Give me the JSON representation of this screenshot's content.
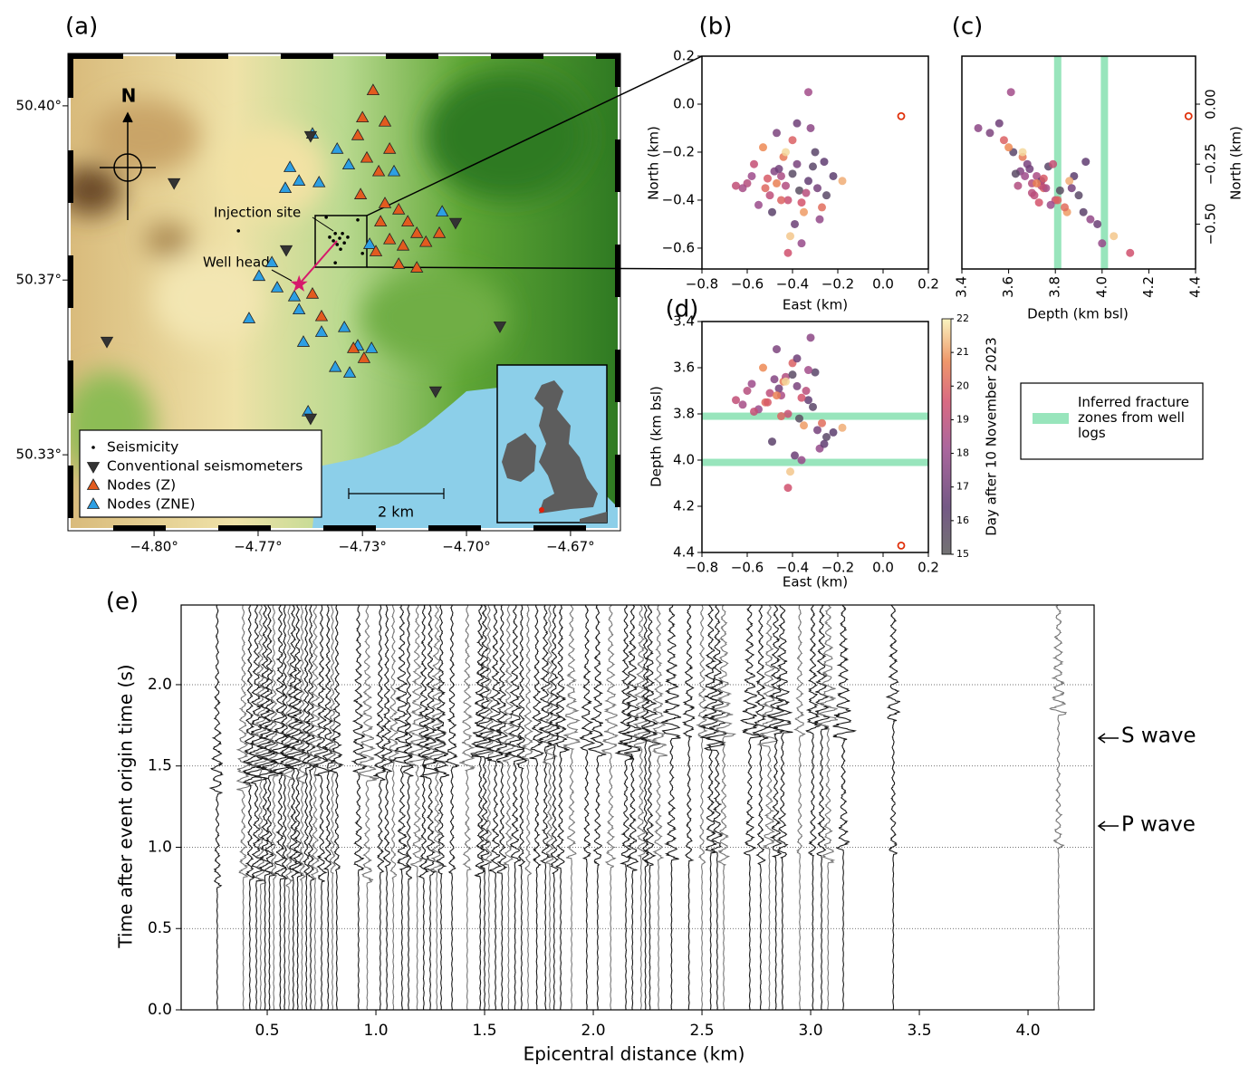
{
  "chart_data": [
    {
      "type": "map",
      "panel_label": "(a)",
      "xlim": [
        -4.8267,
        -4.6516
      ],
      "ylim": [
        50.3193,
        50.4095
      ],
      "xticks": [
        {
          "value": -4.8,
          "label": "−4.80°"
        },
        {
          "value": -4.7667,
          "label": "−4.77°"
        },
        {
          "value": -4.7333,
          "label": "−4.73°"
        },
        {
          "value": -4.7,
          "label": "−4.70°"
        },
        {
          "value": -4.6667,
          "label": "−4.67°"
        }
      ],
      "yticks": [
        {
          "value": 50.4,
          "label": "50.40°"
        },
        {
          "value": 50.3667,
          "label": "50.37°"
        },
        {
          "value": 50.3333,
          "label": "50.33°"
        }
      ],
      "north_label": "N",
      "series": [
        {
          "name": "Seismicity",
          "color": "#000000",
          "marker": "dot",
          "x": [
            -4.7406,
            -4.742,
            -4.7391,
            -4.7426,
            -4.7397,
            -4.7414,
            -4.738,
            -4.7438,
            -4.7403,
            -4.773,
            -4.7449,
            -4.7348,
            -4.742,
            -4.7333
          ],
          "y": [
            50.3747,
            50.3756,
            50.3738,
            50.3742,
            50.3756,
            50.3735,
            50.3749,
            50.3749,
            50.3726,
            50.3761,
            50.3787,
            50.3782,
            50.37,
            50.3718
          ]
        },
        {
          "name": "Conventional seismometers",
          "color": "#333333",
          "marker": "triangle-down",
          "x": [
            -4.7936,
            -4.7577,
            -4.8151,
            -4.7499,
            -4.7035,
            -4.6893,
            -4.7099,
            -4.7499
          ],
          "y": [
            50.3853,
            50.3725,
            50.355,
            50.3943,
            50.3777,
            50.3579,
            50.3455,
            50.3403
          ]
        },
        {
          "name": "Nodes (Z)",
          "color": "#e25b1f",
          "marker": "triangle-up",
          "x": [
            -4.7299,
            -4.7333,
            -4.7261,
            -4.7348,
            -4.7246,
            -4.7319,
            -4.7281,
            -4.7339,
            -4.7261,
            -4.7217,
            -4.7275,
            -4.7188,
            -4.7159,
            -4.7246,
            -4.7203,
            -4.729,
            -4.713,
            -4.7217,
            -4.7159,
            -4.7087,
            -4.7493,
            -4.7464,
            -4.7362,
            -4.7328
          ],
          "y": [
            50.4029,
            50.3977,
            50.3969,
            50.3943,
            50.3917,
            50.39,
            50.3874,
            50.383,
            50.3813,
            50.3801,
            50.3778,
            50.3778,
            50.3756,
            50.3744,
            50.3732,
            50.3721,
            50.3739,
            50.3697,
            50.369,
            50.3756,
            50.364,
            50.3597,
            50.3536,
            50.3517
          ]
        },
        {
          "name": "Nodes (ZNE)",
          "color": "#2d9fe3",
          "marker": "triangle-up",
          "x": [
            -4.7493,
            -4.7565,
            -4.7536,
            -4.758,
            -4.7472,
            -4.7414,
            -4.7377,
            -4.7232,
            -4.7078,
            -4.7623,
            -4.7664,
            -4.7606,
            -4.7551,
            -4.7696,
            -4.7536,
            -4.7464,
            -4.7522,
            -4.7391,
            -4.7348,
            -4.7304,
            -4.742,
            -4.7374,
            -4.7507,
            -4.731
          ],
          "y": [
            50.3946,
            50.3882,
            50.3856,
            50.3842,
            50.3853,
            50.3917,
            50.3887,
            50.3874,
            50.3797,
            50.37,
            50.3674,
            50.3652,
            50.3635,
            50.3593,
            50.361,
            50.3567,
            50.3548,
            50.3576,
            50.3541,
            50.3536,
            50.35,
            50.3489,
            50.3415,
            50.3735
          ]
        }
      ],
      "well_head": {
        "lon": -4.7536,
        "lat": 50.3659,
        "color": "#d6196b"
      },
      "injection_label": "Injection site",
      "well_head_label": "Well head",
      "scale_label": "2 km"
    },
    {
      "type": "hypocenters",
      "events": {
        "east": [
          -0.45,
          -0.38,
          -0.52,
          -0.3,
          -0.42,
          -0.6,
          -0.35,
          -0.48,
          -0.25,
          -0.4,
          -0.55,
          -0.33,
          -0.44,
          -0.28,
          -0.5,
          -0.37,
          -0.62,
          -0.41,
          -0.46,
          -0.22,
          -0.36,
          -0.53,
          -0.31,
          -0.43,
          -0.57,
          -0.39,
          -0.27,
          -0.47,
          -0.34,
          -0.49,
          -0.18,
          -0.42,
          -0.58,
          -0.32,
          -0.45,
          -0.4,
          -0.26,
          -0.51,
          -0.36,
          -0.43,
          -0.29,
          -0.65,
          -0.38,
          -0.47,
          -0.33
        ],
        "north": [
          -0.3,
          -0.25,
          -0.35,
          -0.2,
          -0.4,
          -0.33,
          -0.45,
          -0.28,
          -0.38,
          -0.15,
          -0.42,
          -0.32,
          -0.22,
          -0.48,
          -0.38,
          -0.36,
          -0.35,
          -0.55,
          -0.27,
          -0.3,
          -0.41,
          -0.18,
          -0.26,
          -0.34,
          -0.25,
          -0.5,
          -0.43,
          -0.12,
          -0.37,
          -0.45,
          -0.32,
          -0.62,
          -0.3,
          -0.1,
          -0.4,
          -0.29,
          -0.24,
          -0.31,
          -0.58,
          -0.2,
          -0.35,
          -0.34,
          -0.08,
          -0.33,
          0.05
        ],
        "depth": [
          3.72,
          3.68,
          3.75,
          3.62,
          3.8,
          3.7,
          3.85,
          3.65,
          3.9,
          3.58,
          3.78,
          3.74,
          3.66,
          3.95,
          3.71,
          3.82,
          3.76,
          4.05,
          3.69,
          3.88,
          3.73,
          3.6,
          3.77,
          3.64,
          3.79,
          3.98,
          3.84,
          3.52,
          3.7,
          3.92,
          3.86,
          4.12,
          3.67,
          3.47,
          3.81,
          3.63,
          3.93,
          3.75,
          4.0,
          3.66,
          3.87,
          3.74,
          3.56,
          3.72,
          3.61
        ],
        "day": [
          18.5,
          17.2,
          20.1,
          16.0,
          19.3,
          18.8,
          21.0,
          17.5,
          15.8,
          19.9,
          18.1,
          16.6,
          20.5,
          17.9,
          19.0,
          15.5,
          18.4,
          21.5,
          17.0,
          16.3,
          19.6,
          20.8,
          15.9,
          18.7,
          19.2,
          16.8,
          20.2,
          17.3,
          18.9,
          16.1,
          21.2,
          19.5,
          18.2,
          17.7,
          20.0,
          15.7,
          16.5,
          19.8,
          18.0,
          21.7,
          17.1,
          19.1,
          16.9,
          20.6,
          18.3
        ]
      },
      "reference": {
        "east": 0.08,
        "north": -0.05,
        "depth": 4.37,
        "color": "#e0300a"
      },
      "colormap": "magma",
      "clim": [
        15,
        22
      ],
      "cticks": [
        15,
        16,
        17,
        18,
        19,
        20,
        21,
        22
      ],
      "clabel": "Day after 10 November 2023",
      "fracture_zones": {
        "depths": [
          3.81,
          4.01
        ],
        "color": "#86e0b0",
        "label": "Inferred fracture zones from well logs"
      },
      "panels": [
        {
          "panel_label": "(b)",
          "xlabel": "East (km)",
          "ylabel": "North (km)",
          "xlim": [
            -0.8,
            0.2
          ],
          "ylim": [
            -0.687,
            0.2
          ],
          "xticks": [
            {
              "value": -0.8,
              "label": "−0.8"
            },
            {
              "value": -0.6,
              "label": "−0.6"
            },
            {
              "value": -0.4,
              "label": "−0.4"
            },
            {
              "value": -0.2,
              "label": "−0.2"
            },
            {
              "value": 0,
              "label": "0.0"
            },
            0.2
          ],
          "yticks": [
            0.2,
            {
              "value": 0,
              "label": "0.0"
            },
            {
              "value": -0.2,
              "label": "−0.2"
            },
            {
              "value": -0.4,
              "label": "−0.4"
            },
            {
              "value": -0.6,
              "label": "−0.6"
            }
          ]
        },
        {
          "panel_label": "(c)",
          "xlabel": "Depth (km bsl)",
          "ylabel": "North (km)",
          "xlim": [
            3.4,
            4.4
          ],
          "ylim": [
            -0.687,
            0.2
          ],
          "xticks": [
            3.4,
            3.6,
            3.8,
            {
              "value": 4,
              "label": "4.0"
            },
            4.2,
            4.4
          ],
          "yticks": [
            {
              "value": 0,
              "label": "0.00"
            },
            {
              "value": -0.25,
              "label": "−0.25"
            },
            {
              "value": -0.5,
              "label": "−0.50"
            }
          ]
        },
        {
          "panel_label": "(d)",
          "xlabel": "East (km)",
          "ylabel": "Depth (km bsl)",
          "xlim": [
            -0.8,
            0.2
          ],
          "ylim": [
            4.4,
            3.4
          ],
          "xticks": [
            {
              "value": -0.8,
              "label": "−0.8"
            },
            {
              "value": -0.6,
              "label": "−0.6"
            },
            {
              "value": -0.4,
              "label": "−0.4"
            },
            {
              "value": -0.2,
              "label": "−0.2"
            },
            {
              "value": 0,
              "label": "0.0"
            },
            0.2
          ],
          "yticks": [
            3.4,
            3.6,
            3.8,
            {
              "value": 4,
              "label": "4.0"
            },
            4.2,
            4.4
          ]
        }
      ]
    },
    {
      "type": "waveforms",
      "panel_label": "(e)",
      "xlabel": "Epicentral distance (km)",
      "ylabel": "Time after event origin time (s)",
      "xlim": [
        0.104,
        4.304
      ],
      "ylim": [
        0,
        2.49
      ],
      "grid": true,
      "xticks": [
        0.5,
        {
          "value": 1,
          "label": "1.0"
        },
        1.5,
        {
          "value": 2,
          "label": "2.0"
        },
        2.5,
        {
          "value": 3,
          "label": "3.0"
        },
        3.5,
        {
          "value": 4,
          "label": "4.0"
        }
      ],
      "yticks": [
        {
          "value": 0,
          "label": "0.0"
        },
        0.5,
        {
          "value": 1,
          "label": "1.0"
        },
        1.5,
        {
          "value": 2,
          "label": "2.0"
        }
      ],
      "distances": [
        0.27,
        0.39,
        0.42,
        0.45,
        0.47,
        0.49,
        0.51,
        0.53,
        0.56,
        0.58,
        0.6,
        0.62,
        0.64,
        0.66,
        0.68,
        0.7,
        0.72,
        0.75,
        0.78,
        0.8,
        0.82,
        0.92,
        0.96,
        1.02,
        1.05,
        1.08,
        1.12,
        1.15,
        1.19,
        1.22,
        1.25,
        1.28,
        1.3,
        1.35,
        1.42,
        1.48,
        1.5,
        1.52,
        1.55,
        1.58,
        1.61,
        1.64,
        1.67,
        1.7,
        1.74,
        1.78,
        1.8,
        1.82,
        1.85,
        1.9,
        1.97,
        2.02,
        2.08,
        2.15,
        2.18,
        2.22,
        2.24,
        2.26,
        2.3,
        2.36,
        2.44,
        2.5,
        2.54,
        2.57,
        2.6,
        2.72,
        2.77,
        2.81,
        2.84,
        2.87,
        2.95,
        3.01,
        3.05,
        3.08,
        3.15,
        3.38,
        4.14
      ],
      "annotations": [
        "S wave",
        "P wave"
      ]
    }
  ]
}
